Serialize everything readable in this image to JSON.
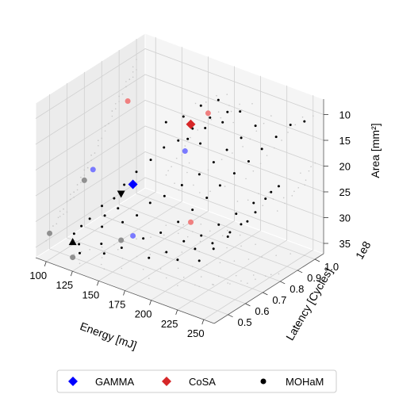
{
  "chart_data": {
    "type": "scatter",
    "projection": "3d",
    "title": "",
    "xlabel": "Energy [mJ]",
    "ylabel": "Latency [Cycles]",
    "zlabel": "Area [mm²]",
    "ylabel_offset": "1e8",
    "xlim": [
      90,
      260
    ],
    "ylim": [
      0.42,
      1.05
    ],
    "zlim": [
      7,
      37
    ],
    "z_inverted": true,
    "grid": true,
    "legend_position": "bottom-center",
    "x_ticks": [
      "100",
      "125",
      "150",
      "175",
      "200",
      "225",
      "250"
    ],
    "y_ticks": [
      "0.5",
      "0.6",
      "0.7",
      "0.8",
      "0.9",
      "1.0"
    ],
    "z_ticks": [
      "10",
      "15",
      "20",
      "25",
      "30",
      "35"
    ],
    "series": [
      {
        "name": "GAMMA",
        "marker": "diamond",
        "color": "#0000ff",
        "points": [
          [
            128,
            0.75,
            27
          ]
        ],
        "projection_color": "#7a7aff"
      },
      {
        "name": "CoSA",
        "marker": "diamond",
        "color": "#d62728",
        "points": [
          [
            150,
            0.95,
            18
          ]
        ],
        "projection_color": "#f08080"
      },
      {
        "name": "MOHaM",
        "marker": "dot",
        "color": "#000000",
        "points": [
          [
            110,
            0.52,
            33
          ],
          [
            112,
            0.55,
            32
          ],
          [
            115,
            0.58,
            31
          ],
          [
            118,
            0.5,
            34
          ],
          [
            120,
            0.62,
            29
          ],
          [
            122,
            0.48,
            35
          ],
          [
            125,
            0.66,
            28
          ],
          [
            128,
            0.7,
            26
          ],
          [
            130,
            0.56,
            31
          ],
          [
            133,
            0.74,
            24
          ],
          [
            136,
            0.52,
            33
          ],
          [
            140,
            0.78,
            22
          ],
          [
            143,
            0.6,
            30
          ],
          [
            146,
            0.82,
            20
          ],
          [
            150,
            0.64,
            29
          ],
          [
            153,
            0.86,
            19
          ],
          [
            156,
            0.68,
            27
          ],
          [
            160,
            0.9,
            17
          ],
          [
            163,
            0.72,
            26
          ],
          [
            166,
            0.58,
            31
          ],
          [
            170,
            0.94,
            15
          ],
          [
            173,
            0.76,
            24
          ],
          [
            176,
            0.62,
            30
          ],
          [
            180,
            0.98,
            14
          ],
          [
            183,
            0.8,
            22
          ],
          [
            186,
            0.66,
            28
          ],
          [
            190,
            0.84,
            20
          ],
          [
            193,
            0.7,
            26
          ],
          [
            196,
            0.88,
            18
          ],
          [
            200,
            0.74,
            24
          ],
          [
            203,
            0.92,
            16
          ],
          [
            206,
            0.78,
            22
          ],
          [
            210,
            0.96,
            14
          ],
          [
            213,
            0.82,
            20
          ],
          [
            216,
            0.6,
            32
          ],
          [
            220,
            0.86,
            18
          ],
          [
            223,
            0.64,
            30
          ],
          [
            226,
            0.9,
            16
          ],
          [
            230,
            0.68,
            28
          ],
          [
            233,
            0.94,
            14
          ],
          [
            236,
            0.72,
            26
          ],
          [
            240,
            0.98,
            12
          ],
          [
            243,
            0.76,
            24
          ],
          [
            246,
            0.8,
            22
          ],
          [
            250,
            1.0,
            11
          ],
          [
            252,
            0.84,
            20
          ],
          [
            138,
            0.88,
            17
          ],
          [
            148,
            0.92,
            16
          ],
          [
            158,
            0.96,
            14
          ],
          [
            168,
            1.0,
            13
          ],
          [
            178,
            0.54,
            33
          ],
          [
            188,
            0.58,
            32
          ],
          [
            198,
            0.62,
            30
          ],
          [
            208,
            0.66,
            29
          ],
          [
            218,
            0.7,
            27
          ],
          [
            228,
            0.74,
            25
          ],
          [
            238,
            0.78,
            23
          ],
          [
            248,
            0.82,
            21
          ],
          [
            142,
            0.5,
            34
          ],
          [
            152,
            0.54,
            33
          ],
          [
            162,
            0.86,
            18
          ],
          [
            172,
            0.9,
            16
          ],
          [
            182,
            0.94,
            15
          ],
          [
            192,
            0.98,
            13
          ],
          [
            202,
            0.56,
            32
          ],
          [
            212,
            0.6,
            30
          ],
          [
            222,
            0.64,
            29
          ],
          [
            232,
            0.68,
            27
          ],
          [
            242,
            0.72,
            25
          ],
          [
            126,
            0.6,
            30
          ],
          [
            132,
            0.64,
            29
          ],
          [
            174,
            0.86,
            18
          ]
        ]
      }
    ],
    "extra_markers": [
      {
        "marker": "triangle-down",
        "color": "#000000",
        "point": [
          125,
          0.7,
          28
        ]
      },
      {
        "marker": "triangle-up",
        "color": "#000000",
        "point": [
          112,
          0.5,
          34
        ]
      }
    ],
    "legend": [
      {
        "label": "GAMMA",
        "marker": "diamond",
        "color": "#0000ff"
      },
      {
        "label": "CoSA",
        "marker": "diamond",
        "color": "#d62728"
      },
      {
        "label": "MOHaM",
        "marker": "dot",
        "color": "#000000"
      }
    ]
  }
}
